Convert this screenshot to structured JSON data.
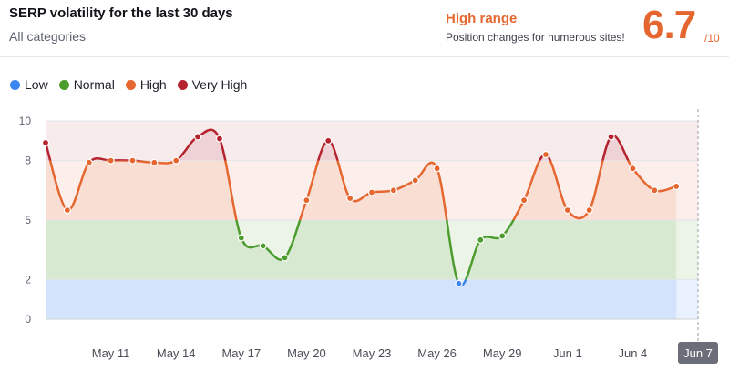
{
  "header": {
    "title": "SERP volatility for the last 30 days",
    "subtitle": "All categories",
    "range_label": "High range",
    "range_description": "Position changes for numerous sites!",
    "score": "6.7",
    "score_max": "/10"
  },
  "legend": [
    {
      "label": "Low",
      "color": "#3b86f0"
    },
    {
      "label": "Normal",
      "color": "#4c9c2e"
    },
    {
      "label": "High",
      "color": "#e5672f"
    },
    {
      "label": "Very High",
      "color": "#b5232f"
    }
  ],
  "chart_data": {
    "type": "area",
    "title": "SERP volatility for the last 30 days",
    "yticks": [
      0,
      2,
      5,
      8,
      10
    ],
    "ylim": [
      0,
      10
    ],
    "xlim": [
      "May 8",
      "Jun 7"
    ],
    "xticks": [
      "May 11",
      "May 14",
      "May 17",
      "May 20",
      "May 23",
      "May 26",
      "May 29",
      "Jun 1",
      "Jun 4",
      "Jun 7"
    ],
    "active_xtick": "Jun 7",
    "grid": true,
    "bands": [
      {
        "name": "Low",
        "from": 0,
        "to": 2,
        "color": "#d6e5fb"
      },
      {
        "name": "Normal",
        "from": 2,
        "to": 5,
        "color": "#ddebd6"
      },
      {
        "name": "High",
        "from": 5,
        "to": 8,
        "color": "#fae0d8"
      },
      {
        "name": "Very High",
        "from": 8,
        "to": 10,
        "color": "#f3dadd"
      }
    ],
    "points": [
      {
        "x": "May 8",
        "y": 8.9
      },
      {
        "x": "May 9",
        "y": 5.5
      },
      {
        "x": "May 10",
        "y": 7.9
      },
      {
        "x": "May 11",
        "y": 8.0
      },
      {
        "x": "May 12",
        "y": 8.0
      },
      {
        "x": "May 13",
        "y": 7.9
      },
      {
        "x": "May 14",
        "y": 8.0
      },
      {
        "x": "May 15",
        "y": 9.2
      },
      {
        "x": "May 16",
        "y": 9.1
      },
      {
        "x": "May 17",
        "y": 4.1
      },
      {
        "x": "May 18",
        "y": 3.7
      },
      {
        "x": "May 19",
        "y": 3.1
      },
      {
        "x": "May 20",
        "y": 6.0
      },
      {
        "x": "May 21",
        "y": 9.0
      },
      {
        "x": "May 22",
        "y": 6.1
      },
      {
        "x": "May 23",
        "y": 6.4
      },
      {
        "x": "May 24",
        "y": 6.5
      },
      {
        "x": "May 25",
        "y": 7.0
      },
      {
        "x": "May 26",
        "y": 7.6
      },
      {
        "x": "May 27",
        "y": 1.8
      },
      {
        "x": "May 28",
        "y": 4.0
      },
      {
        "x": "May 29",
        "y": 4.2
      },
      {
        "x": "May 30",
        "y": 6.0
      },
      {
        "x": "May 31",
        "y": 8.3
      },
      {
        "x": "Jun 1",
        "y": 5.5
      },
      {
        "x": "Jun 2",
        "y": 5.5
      },
      {
        "x": "Jun 3",
        "y": 9.2
      },
      {
        "x": "Jun 4",
        "y": 7.6
      },
      {
        "x": "Jun 5",
        "y": 6.5
      },
      {
        "x": "Jun 6",
        "y": 6.7
      }
    ]
  }
}
